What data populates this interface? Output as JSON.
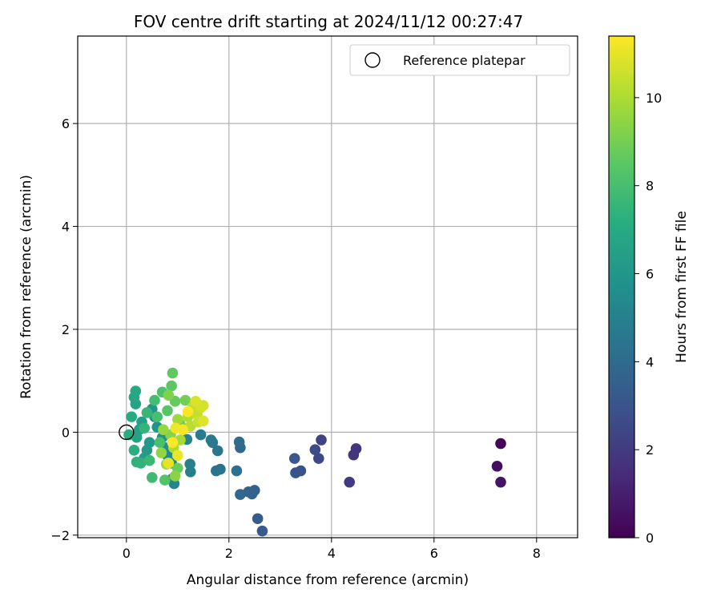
{
  "chart_data": {
    "type": "scatter",
    "title": "FOV centre drift starting at 2024/11/12 00:27:47",
    "xlabel": "Angular distance from reference (arcmin)",
    "ylabel": "Rotation from reference (arcmin)",
    "xlim": [
      -0.95,
      8.8
    ],
    "ylim": [
      -2.05,
      7.7
    ],
    "x_ticks": [
      0,
      2,
      4,
      6,
      8
    ],
    "y_ticks": [
      -2,
      0,
      2,
      4,
      6
    ],
    "x_tick_labels": [
      "0",
      "2",
      "4",
      "6",
      "8"
    ],
    "y_tick_labels": [
      "−2",
      "0",
      "2",
      "4",
      "6"
    ],
    "grid": true,
    "legend": {
      "placement": "top-right",
      "entries": [
        "Reference platepar"
      ]
    },
    "colormap": "viridis",
    "colorbar": {
      "label": "Hours from first FF file",
      "range": [
        0,
        11.4
      ],
      "ticks": [
        0,
        2,
        4,
        6,
        8,
        10
      ],
      "tick_labels": [
        "0",
        "2",
        "4",
        "6",
        "8",
        "10"
      ]
    },
    "reference_point": {
      "x": 0,
      "y": 0
    },
    "points": [
      {
        "x": 7.3,
        "y": -0.22,
        "c": 0.2
      },
      {
        "x": 7.23,
        "y": -0.66,
        "c": 0.4
      },
      {
        "x": 7.3,
        "y": -0.97,
        "c": 0.6
      },
      {
        "x": 4.48,
        "y": -0.32,
        "c": 1.7
      },
      {
        "x": 4.43,
        "y": -0.44,
        "c": 1.8
      },
      {
        "x": 4.35,
        "y": -0.97,
        "c": 2.0
      },
      {
        "x": 3.8,
        "y": -0.15,
        "c": 2.3
      },
      {
        "x": 3.75,
        "y": -0.51,
        "c": 2.5
      },
      {
        "x": 3.68,
        "y": -0.34,
        "c": 2.6
      },
      {
        "x": 3.4,
        "y": -0.75,
        "c": 2.9
      },
      {
        "x": 3.3,
        "y": -0.79,
        "c": 3.0
      },
      {
        "x": 3.28,
        "y": -0.51,
        "c": 3.1
      },
      {
        "x": 2.65,
        "y": -1.92,
        "c": 3.3
      },
      {
        "x": 2.56,
        "y": -1.68,
        "c": 3.4
      },
      {
        "x": 2.5,
        "y": -1.13,
        "c": 3.5
      },
      {
        "x": 2.45,
        "y": -1.2,
        "c": 3.6
      },
      {
        "x": 2.38,
        "y": -1.16,
        "c": 3.7
      },
      {
        "x": 2.22,
        "y": -1.21,
        "c": 3.8
      },
      {
        "x": 2.22,
        "y": -0.3,
        "c": 3.9
      },
      {
        "x": 2.2,
        "y": -0.19,
        "c": 4.0
      },
      {
        "x": 2.15,
        "y": -0.75,
        "c": 4.2
      },
      {
        "x": 1.83,
        "y": -0.72,
        "c": 4.3
      },
      {
        "x": 1.75,
        "y": -0.75,
        "c": 4.4
      },
      {
        "x": 1.78,
        "y": -0.36,
        "c": 4.5
      },
      {
        "x": 1.68,
        "y": -0.2,
        "c": 4.6
      },
      {
        "x": 1.65,
        "y": -0.15,
        "c": 4.7
      },
      {
        "x": 1.45,
        "y": -0.05,
        "c": 4.8
      },
      {
        "x": 1.25,
        "y": -0.77,
        "c": 4.9
      },
      {
        "x": 1.24,
        "y": -0.62,
        "c": 5.0
      },
      {
        "x": 1.18,
        "y": -0.14,
        "c": 5.1
      },
      {
        "x": 0.93,
        "y": -1.0,
        "c": 5.2
      },
      {
        "x": 0.9,
        "y": -0.9,
        "c": 5.3
      },
      {
        "x": 0.88,
        "y": -0.6,
        "c": 5.4
      },
      {
        "x": 0.8,
        "y": -0.45,
        "c": 5.5
      },
      {
        "x": 0.75,
        "y": -0.3,
        "c": 5.6
      },
      {
        "x": 0.7,
        "y": -0.1,
        "c": 5.7
      },
      {
        "x": 0.6,
        "y": 0.1,
        "c": 5.8
      },
      {
        "x": 0.55,
        "y": 0.3,
        "c": 5.9
      },
      {
        "x": 0.5,
        "y": 0.45,
        "c": 6.0
      },
      {
        "x": 0.45,
        "y": -0.2,
        "c": 6.1
      },
      {
        "x": 0.4,
        "y": -0.35,
        "c": 6.2
      },
      {
        "x": 0.35,
        "y": -0.5,
        "c": 6.3
      },
      {
        "x": 0.3,
        "y": 0.2,
        "c": 6.4
      },
      {
        "x": 0.25,
        "y": 0.05,
        "c": 6.5
      },
      {
        "x": 0.2,
        "y": -0.1,
        "c": 6.6
      },
      {
        "x": 0.18,
        "y": 0.55,
        "c": 6.7
      },
      {
        "x": 0.15,
        "y": 0.68,
        "c": 6.8
      },
      {
        "x": 0.18,
        "y": 0.8,
        "c": 6.9
      },
      {
        "x": 0.1,
        "y": 0.3,
        "c": 7.0
      },
      {
        "x": 0.05,
        "y": -0.05,
        "c": 7.1
      },
      {
        "x": 0.15,
        "y": -0.35,
        "c": 7.2
      },
      {
        "x": 0.2,
        "y": -0.58,
        "c": 7.3
      },
      {
        "x": 0.28,
        "y": -0.6,
        "c": 7.4
      },
      {
        "x": 0.35,
        "y": 0.08,
        "c": 7.5
      },
      {
        "x": 0.4,
        "y": 0.38,
        "c": 7.6
      },
      {
        "x": 0.45,
        "y": -0.55,
        "c": 7.7
      },
      {
        "x": 0.5,
        "y": -0.88,
        "c": 7.8
      },
      {
        "x": 0.55,
        "y": 0.62,
        "c": 7.9
      },
      {
        "x": 0.6,
        "y": 0.3,
        "c": 8.0
      },
      {
        "x": 0.65,
        "y": -0.2,
        "c": 8.1
      },
      {
        "x": 0.7,
        "y": 0.78,
        "c": 8.2
      },
      {
        "x": 0.75,
        "y": -0.93,
        "c": 8.3
      },
      {
        "x": 0.8,
        "y": 0.42,
        "c": 8.4
      },
      {
        "x": 0.88,
        "y": 0.9,
        "c": 8.5
      },
      {
        "x": 0.9,
        "y": 1.15,
        "c": 8.6
      },
      {
        "x": 0.95,
        "y": 0.6,
        "c": 8.7
      },
      {
        "x": 1.0,
        "y": -0.7,
        "c": 8.8
      },
      {
        "x": 1.05,
        "y": 0.15,
        "c": 8.9
      },
      {
        "x": 1.15,
        "y": 0.62,
        "c": 9.0
      },
      {
        "x": 0.82,
        "y": 0.72,
        "c": 9.2
      },
      {
        "x": 0.86,
        "y": -0.05,
        "c": 9.3
      },
      {
        "x": 0.95,
        "y": -0.85,
        "c": 9.4
      },
      {
        "x": 0.68,
        "y": -0.4,
        "c": 9.5
      },
      {
        "x": 0.72,
        "y": 0.05,
        "c": 9.6
      },
      {
        "x": 0.78,
        "y": -0.62,
        "c": 9.7
      },
      {
        "x": 1.0,
        "y": 0.25,
        "c": 9.8
      },
      {
        "x": 1.05,
        "y": -0.15,
        "c": 9.9
      },
      {
        "x": 0.92,
        "y": -0.3,
        "c": 10.0
      },
      {
        "x": 1.2,
        "y": 0.3,
        "c": 10.1
      },
      {
        "x": 1.25,
        "y": 0.12,
        "c": 10.2
      },
      {
        "x": 1.3,
        "y": 0.5,
        "c": 10.3
      },
      {
        "x": 1.38,
        "y": 0.35,
        "c": 10.4
      },
      {
        "x": 1.4,
        "y": 0.2,
        "c": 10.5
      },
      {
        "x": 1.45,
        "y": 0.48,
        "c": 10.6
      },
      {
        "x": 1.5,
        "y": 0.52,
        "c": 10.7
      },
      {
        "x": 1.35,
        "y": 0.6,
        "c": 10.8
      },
      {
        "x": 1.5,
        "y": 0.22,
        "c": 10.9
      },
      {
        "x": 0.82,
        "y": -0.6,
        "c": 11.0
      },
      {
        "x": 1.0,
        "y": -0.45,
        "c": 11.1
      },
      {
        "x": 0.96,
        "y": 0.08,
        "c": 11.2
      },
      {
        "x": 1.1,
        "y": 0.05,
        "c": 11.3
      },
      {
        "x": 0.9,
        "y": -0.2,
        "c": 11.35
      },
      {
        "x": 1.2,
        "y": 0.4,
        "c": 11.4
      }
    ]
  }
}
